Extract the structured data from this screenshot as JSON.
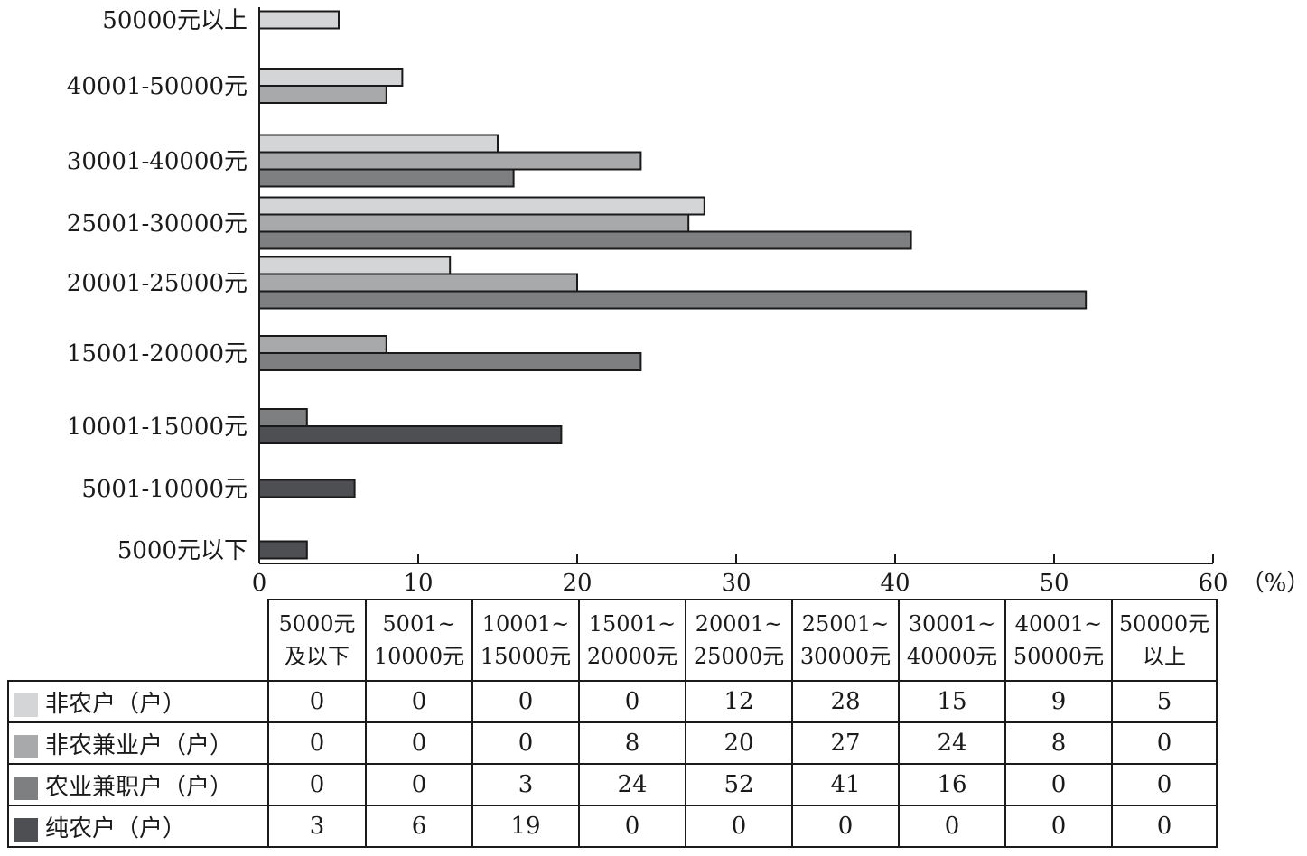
{
  "chart_data": {
    "type": "bar",
    "orientation": "horizontal",
    "categories": [
      "5000元以下",
      "5001-10000元",
      "10001-15000元",
      "15001-20000元",
      "20001-25000元",
      "25001-30000元",
      "30001-40000元",
      "40001-50000元",
      "50000元以上"
    ],
    "series": [
      {
        "name": "非农户（户）",
        "color": "#d4d5d7",
        "values": [
          0,
          0,
          0,
          0,
          12,
          28,
          15,
          9,
          5
        ]
      },
      {
        "name": "非农兼业户（户）",
        "color": "#a8a9ab",
        "values": [
          0,
          0,
          0,
          8,
          20,
          27,
          24,
          8,
          0
        ]
      },
      {
        "name": "农业兼职户（户）",
        "color": "#7e7f81",
        "values": [
          0,
          0,
          3,
          24,
          52,
          41,
          16,
          0,
          0
        ]
      },
      {
        "name": "纯农户（户）",
        "color": "#4e4f53",
        "values": [
          3,
          6,
          19,
          0,
          0,
          0,
          0,
          0,
          0
        ]
      }
    ],
    "xlim": [
      0,
      60
    ],
    "x_ticks": [
      0,
      10,
      20,
      30,
      40,
      50,
      60
    ],
    "x_unit": "（%）",
    "grid": false
  },
  "table": {
    "column_headers": [
      [
        "5000元",
        "及以下"
      ],
      [
        "5001~",
        "10000元"
      ],
      [
        "10001~",
        "15000元"
      ],
      [
        "15001~",
        "20000元"
      ],
      [
        "20001~",
        "25000元"
      ],
      [
        "25001~",
        "30000元"
      ],
      [
        "30001~",
        "40000元"
      ],
      [
        "40001~",
        "50000元"
      ],
      [
        "50000元",
        "以上"
      ]
    ]
  }
}
